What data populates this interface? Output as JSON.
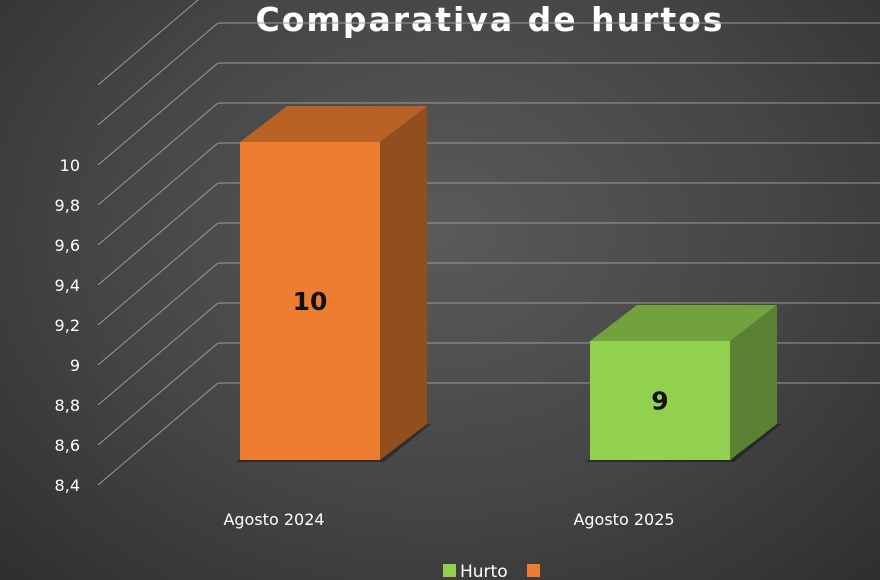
{
  "chart_data": {
    "type": "bar",
    "title": "Comparativa de hurtos",
    "categories": [
      "Agosto 2024",
      "Agosto 2025"
    ],
    "values": [
      10,
      9
    ],
    "data_labels": [
      "10",
      "9"
    ],
    "bar_colors": [
      "#ED7D31",
      "#92D050"
    ],
    "ylim": [
      8.4,
      10
    ],
    "y_ticks": [
      "8,4",
      "8,6",
      "8,8",
      "9",
      "9,2",
      "9,4",
      "9,6",
      "9,8",
      "10"
    ],
    "grid": true,
    "style": "3d-column",
    "legend": {
      "position": "bottom",
      "entries": [
        {
          "label": "Hurto",
          "color": "#92D050"
        },
        {
          "label": "",
          "color": "#ED7D31"
        }
      ]
    }
  }
}
